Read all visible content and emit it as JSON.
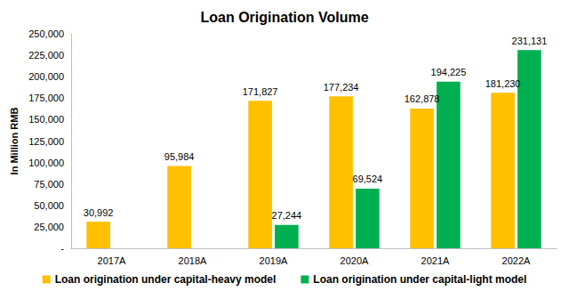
{
  "chart_data": {
    "type": "bar",
    "title": "Loan Origination Volume",
    "y_label": "In Million RMB",
    "categories": [
      "2017A",
      "2018A",
      "2019A",
      "2020A",
      "2021A",
      "2022A"
    ],
    "series": [
      {
        "name": "Loan origination under capital-heavy model",
        "color": "#FFC000",
        "values": [
          30992,
          95984,
          171827,
          177234,
          162878,
          181230
        ],
        "value_labels": [
          "30,992",
          "95,984",
          "171,827",
          "177,234",
          "162,878",
          "181,230"
        ]
      },
      {
        "name": "Loan origination under capital-light model",
        "color": "#00B050",
        "values": [
          null,
          null,
          27244,
          69524,
          194225,
          231131
        ],
        "value_labels": [
          null,
          null,
          "27,244",
          "69,524",
          "194,225",
          "231,131"
        ]
      }
    ],
    "ylim": [
      0,
      250000
    ],
    "yticks": [
      {
        "value": 0,
        "label": "-"
      },
      {
        "value": 25000,
        "label": "25,000"
      },
      {
        "value": 50000,
        "label": "50,000"
      },
      {
        "value": 75000,
        "label": "75,000"
      },
      {
        "value": 100000,
        "label": "100,000"
      },
      {
        "value": 125000,
        "label": "125,000"
      },
      {
        "value": 150000,
        "label": "150,000"
      },
      {
        "value": 175000,
        "label": "175,000"
      },
      {
        "value": 200000,
        "label": "200,000"
      },
      {
        "value": 225000,
        "label": "225,000"
      },
      {
        "value": 250000,
        "label": "250,000"
      }
    ],
    "grid": false,
    "legend": "bottom",
    "data_labels": true
  }
}
